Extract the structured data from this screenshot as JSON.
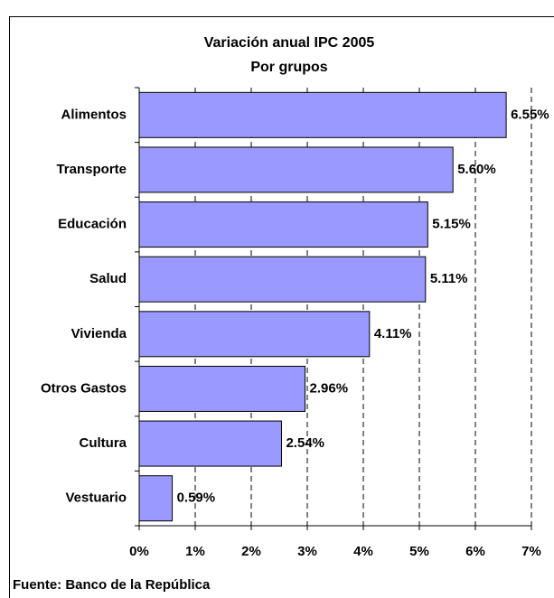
{
  "chart_data": {
    "type": "barh",
    "title": "Variación anual IPC 2005",
    "subtitle": "Por grupos",
    "categories": [
      "Alimentos",
      "Transporte",
      "Educación",
      "Salud",
      "Vivienda",
      "Otros Gastos",
      "Cultura",
      "Vestuario"
    ],
    "values": [
      6.55,
      5.6,
      5.15,
      5.11,
      4.11,
      2.96,
      2.54,
      0.59
    ],
    "value_labels": [
      "6.55%",
      "5.60%",
      "5.15%",
      "5.11%",
      "4.11%",
      "2.96%",
      "2.54%",
      "0.59%"
    ],
    "color": "#9999ff",
    "xlim": [
      0,
      7
    ],
    "xticks": [
      {
        "value": 0,
        "label": "0%"
      },
      {
        "value": 1,
        "label": "1%"
      },
      {
        "value": 2,
        "label": "2%"
      },
      {
        "value": 3,
        "label": "3%"
      },
      {
        "value": 4,
        "label": "4%"
      },
      {
        "value": 5,
        "label": "5%"
      },
      {
        "value": 6,
        "label": "6%"
      },
      {
        "value": 7,
        "label": "7%"
      }
    ],
    "grid": true,
    "source": "Fuente: Banco de la República"
  }
}
